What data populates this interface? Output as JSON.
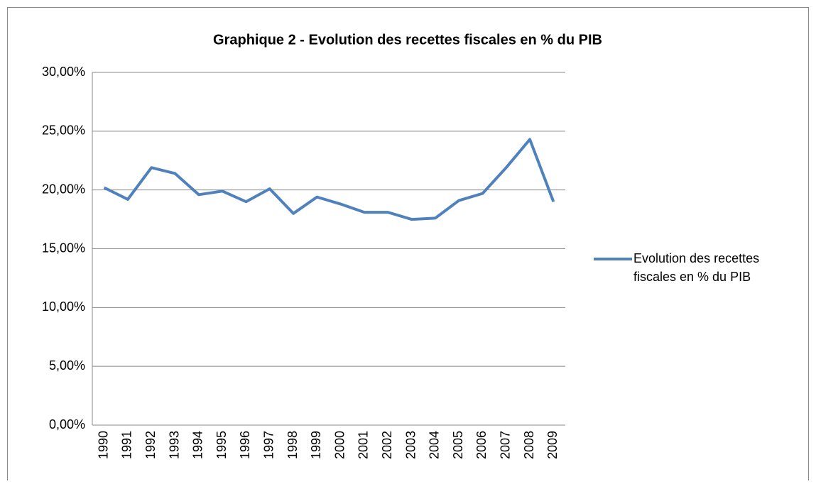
{
  "chart_data": {
    "type": "line",
    "title": "Graphique 2 - Evolution des recettes fiscales en % du PIB",
    "categories": [
      "1990",
      "1991",
      "1992",
      "1993",
      "1994",
      "1995",
      "1996",
      "1997",
      "1998",
      "1999",
      "2000",
      "2001",
      "2002",
      "2003",
      "2004",
      "2005",
      "2006",
      "2007",
      "2008",
      "2009"
    ],
    "series": [
      {
        "name": "Evolution des recettes fiscales en % du PIB",
        "color": "#4f81bd",
        "values": [
          20.2,
          19.2,
          21.9,
          21.4,
          19.6,
          19.9,
          19.0,
          20.1,
          18.0,
          19.4,
          18.8,
          18.1,
          18.1,
          17.5,
          17.6,
          19.1,
          19.7,
          21.9,
          24.3,
          19.0
        ]
      }
    ],
    "ylim": [
      0,
      30
    ],
    "yticks": [
      {
        "value": 0,
        "label": "0,00%"
      },
      {
        "value": 5,
        "label": "5,00%"
      },
      {
        "value": 10,
        "label": "10,00%"
      },
      {
        "value": 15,
        "label": "15,00%"
      },
      {
        "value": 20,
        "label": "20,00%"
      },
      {
        "value": 25,
        "label": "25,00%"
      },
      {
        "value": 30,
        "label": "30,00%"
      }
    ],
    "grid": true,
    "legend": "right"
  }
}
